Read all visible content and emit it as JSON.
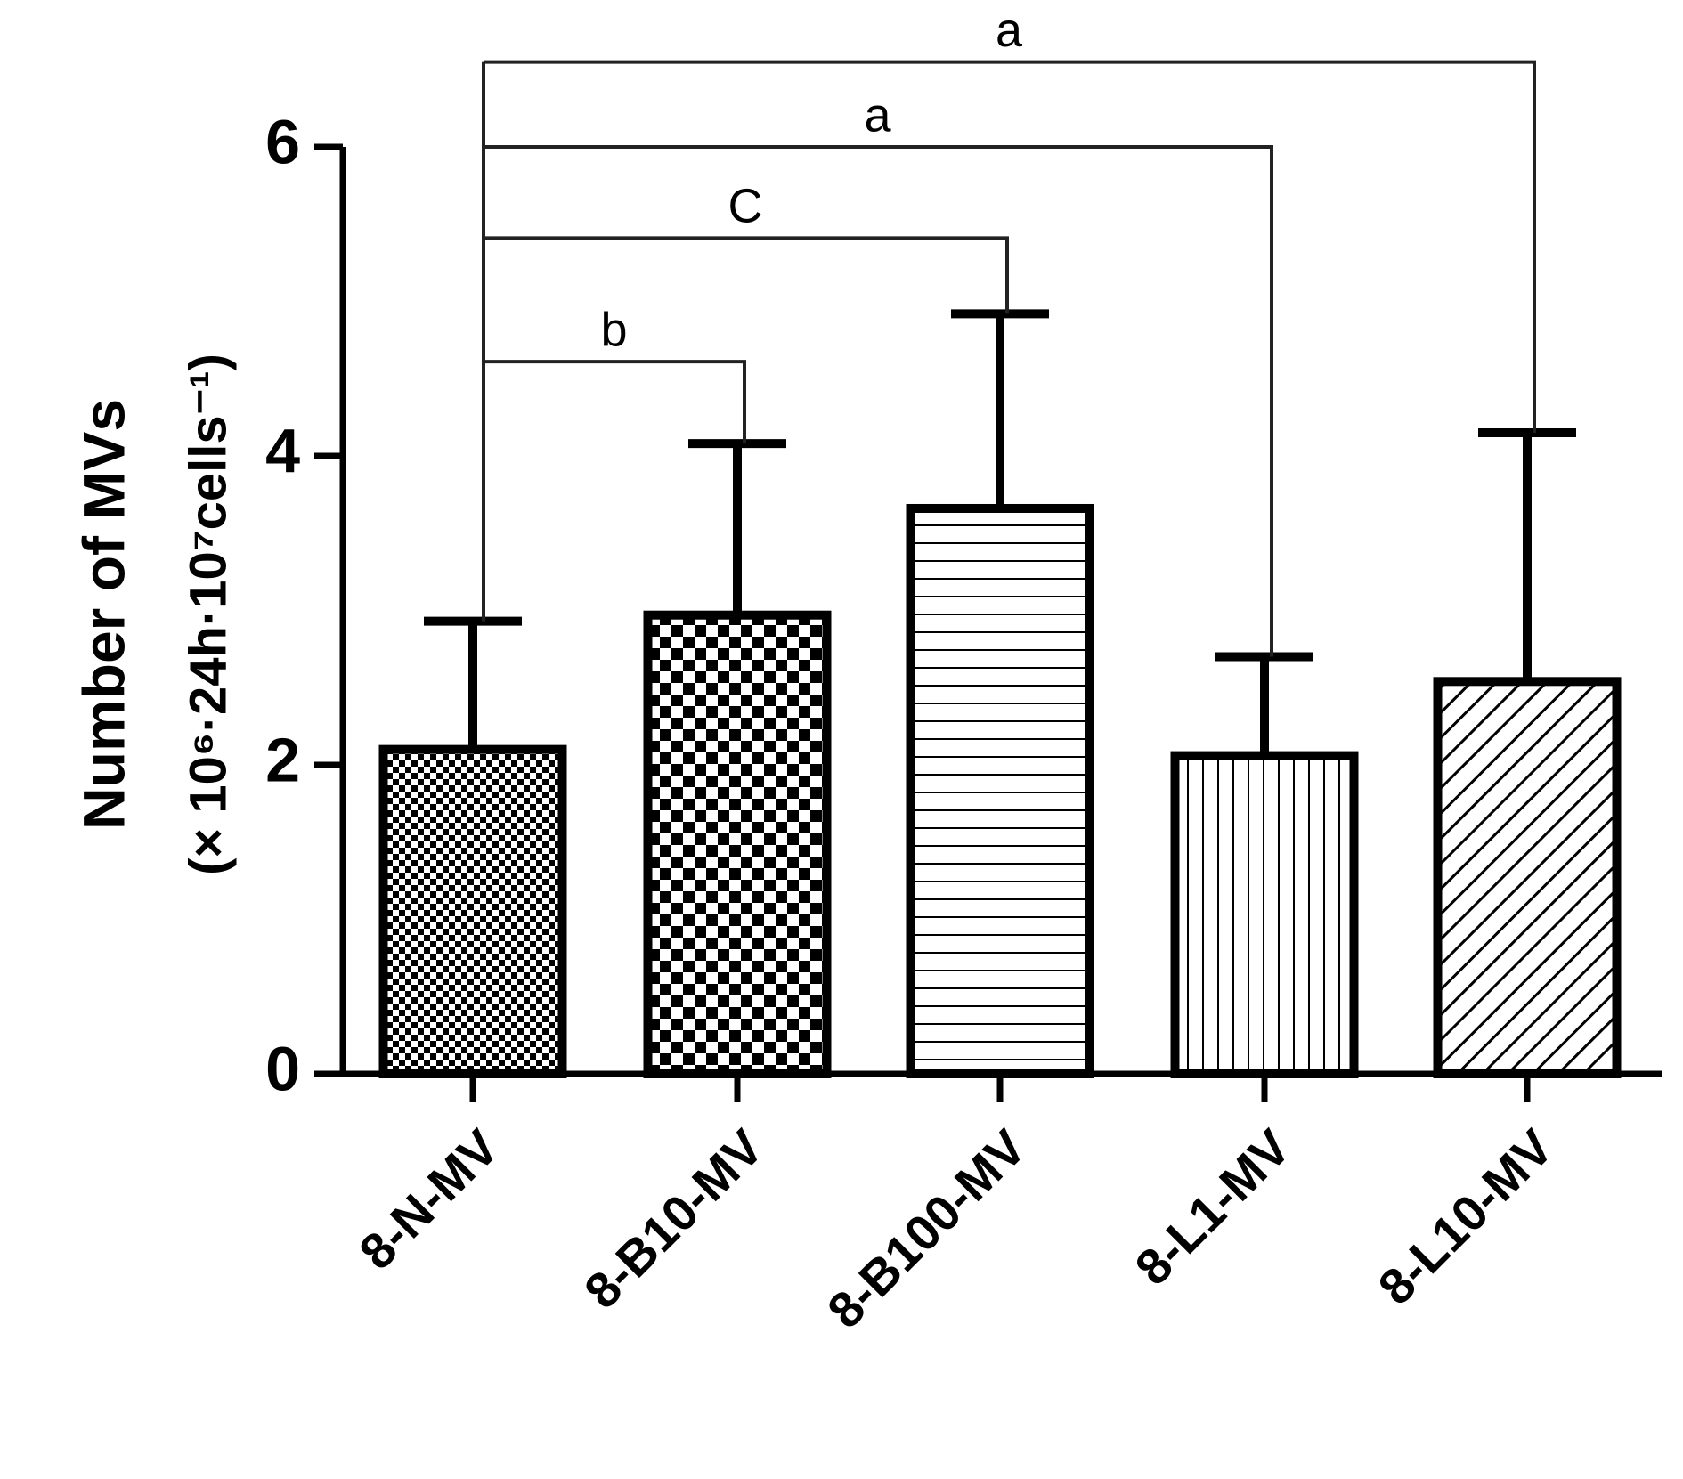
{
  "chart_data": {
    "type": "bar",
    "y_label": [
      "Number of MVs",
      "(× 10⁶·24h·10⁷cells⁻¹)"
    ],
    "categories": [
      "8-N-MV",
      "8-B10-MV",
      "8-B100-MV",
      "8-L1-MV",
      "8-L10-MV"
    ],
    "values": [
      2.1,
      2.97,
      3.66,
      2.06,
      2.54
    ],
    "errors": [
      0.83,
      1.11,
      1.26,
      0.64,
      1.61
    ],
    "patterns": [
      "checker-small",
      "checker-large",
      "horizontal",
      "vertical",
      "diagonal"
    ],
    "color": "#000000",
    "ylim": [
      0,
      6
    ],
    "yticks": [
      0,
      2,
      4,
      6
    ],
    "significance": [
      {
        "pair": [
          "8-N-MV",
          "8-B10-MV"
        ],
        "label": "b",
        "y": 4.61
      },
      {
        "pair": [
          "8-N-MV",
          "8-B100-MV"
        ],
        "label": "C",
        "y": 5.41
      },
      {
        "pair": [
          "8-N-MV",
          "8-L1-MV"
        ],
        "label": "a",
        "y": 6.0
      },
      {
        "pair": [
          "8-N-MV",
          "8-L10-MV"
        ],
        "label": "a",
        "y": 6.55
      }
    ]
  }
}
